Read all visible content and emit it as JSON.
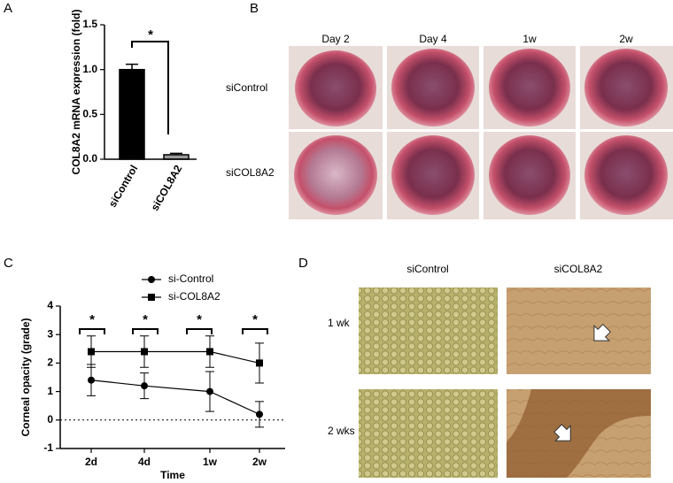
{
  "panel_labels": [
    "A",
    "B",
    "C",
    "D"
  ],
  "chart_data": [
    {
      "type": "bar",
      "ylabel": "COL8A2 mRNA expression (fold)",
      "categories": [
        "siControl",
        "siCOL8A2"
      ],
      "values": [
        1.0,
        0.05
      ],
      "errors": [
        0.06,
        0.015
      ],
      "colors": [
        "#000000",
        "#9a9a9a"
      ],
      "ylim": [
        0,
        1.5
      ],
      "yticks": [
        {
          "value": 0,
          "label": "0.0"
        },
        0.5,
        {
          "value": 1,
          "label": "1.0"
        },
        1.5
      ],
      "annotations": [
        "*"
      ]
    },
    {
      "type": "line",
      "xlabel": "Time",
      "ylabel": "Corneal opacity (grade)",
      "categories": [
        "2d",
        "4d",
        "1w",
        "2w"
      ],
      "series": [
        {
          "name": "si-Control",
          "marker": "circle",
          "color": "#000000",
          "values": [
            1.4,
            1.2,
            1.0,
            0.2
          ],
          "errors": [
            0.55,
            0.45,
            0.7,
            0.45
          ]
        },
        {
          "name": "si-COL8A2",
          "marker": "square",
          "color": "#000000",
          "values": [
            2.4,
            2.4,
            2.4,
            2.0
          ],
          "errors": [
            0.55,
            0.55,
            0.55,
            0.7
          ]
        }
      ],
      "ylim": [
        -1,
        4
      ],
      "yticks": [
        -1,
        0,
        1,
        2,
        3,
        4
      ],
      "reference_line": 0,
      "legend": "top",
      "annotations": [
        "*",
        "*",
        "*",
        "*"
      ]
    }
  ],
  "images_b": {
    "columns": [
      "Day 2",
      "Day 4",
      "1w",
      "2w"
    ],
    "rows": [
      "siControl",
      "siCOL8A2"
    ]
  },
  "images_d": {
    "columns": [
      "siControl",
      "siCOL8A2"
    ],
    "rows": [
      "1 wk",
      "2 wks"
    ]
  }
}
